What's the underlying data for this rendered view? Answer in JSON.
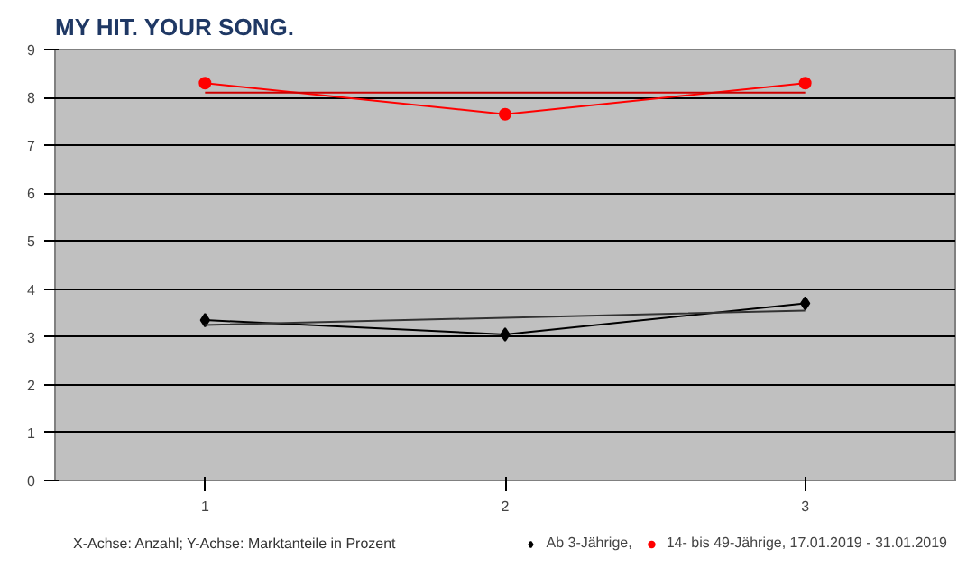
{
  "chart_data": {
    "type": "line",
    "title": "MY HIT. YOUR SONG.",
    "x": [
      1,
      2,
      3
    ],
    "series": [
      {
        "name": "Ab 3-Jährige,",
        "color": "#000000",
        "values": [
          3.35,
          3.05,
          3.7
        ],
        "marker": "diamond"
      },
      {
        "name": "14- bis 49-Jährige, 17.01.2019 - 31.01.2019",
        "color": "#ff0000",
        "values": [
          8.3,
          7.65,
          8.3
        ],
        "marker": "circle"
      },
      {
        "type": "line",
        "color": "#333333",
        "values": [
          3.25,
          3.4,
          3.55
        ],
        "marker": "none"
      },
      {
        "type": "line",
        "color": "#cc0000",
        "values": [
          8.1,
          8.1,
          8.1
        ],
        "marker": "none"
      }
    ],
    "xlim": [
      0.5,
      3.5
    ],
    "xticks": [
      1,
      2,
      3
    ],
    "ylim": [
      0,
      9
    ],
    "yticks": [
      0,
      1,
      2,
      3,
      4,
      5,
      6,
      7,
      8,
      9
    ],
    "grid": "y",
    "legend": "bottom",
    "annotations": [
      "X-Achse: Anzahl; Y-Achse: Marktanteile in Prozent"
    ]
  }
}
